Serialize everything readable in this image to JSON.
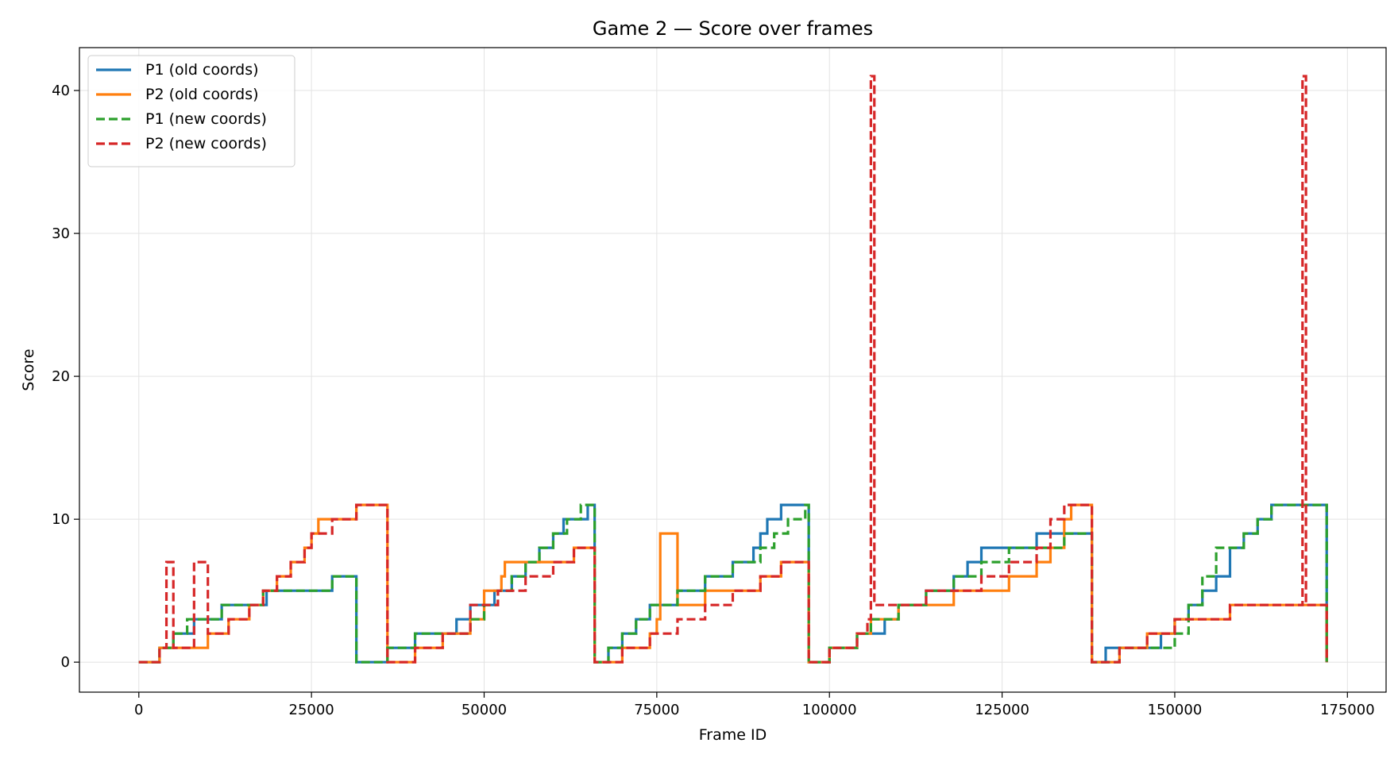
{
  "chart_data": {
    "type": "line",
    "title": "Game 2 — Score over frames",
    "xlabel": "Frame ID",
    "ylabel": "Score",
    "xlim": [
      -8600,
      180600
    ],
    "ylim": [
      -2.1,
      43.0
    ],
    "xticks": [
      0,
      25000,
      50000,
      75000,
      100000,
      125000,
      150000,
      175000
    ],
    "xtick_labels": [
      "0",
      "25000",
      "50000",
      "75000",
      "100000",
      "125000",
      "150000",
      "175000"
    ],
    "yticks": [
      0,
      10,
      20,
      30,
      40
    ],
    "ytick_labels": [
      "0",
      "10",
      "20",
      "30",
      "40"
    ],
    "grid": true,
    "legend_position": "upper-left",
    "series": [
      {
        "name": "P1 (old coords)",
        "color": "#1f77b4",
        "dash": "solid",
        "x": [
          0,
          3000,
          5000,
          8000,
          9500,
          12000,
          16000,
          18500,
          22000,
          25000,
          28000,
          30000,
          31500,
          36000,
          40000,
          44000,
          46000,
          48000,
          50000,
          51500,
          52500,
          54000,
          56000,
          58000,
          60000,
          61500,
          63000,
          65000,
          66000,
          68000,
          70000,
          72000,
          74000,
          76000,
          78000,
          80000,
          82000,
          84000,
          86000,
          88000,
          89000,
          90000,
          91000,
          92000,
          93000,
          95000,
          96500,
          97000,
          100000,
          104000,
          106000,
          108000,
          110000,
          112000,
          114000,
          116000,
          118000,
          120000,
          121000,
          122000,
          124000,
          126000,
          128000,
          130000,
          132000,
          134000,
          136000,
          137500,
          138000,
          140000,
          144000,
          148000,
          150000,
          152000,
          154000,
          156000,
          158000,
          160000,
          162000,
          164000,
          166000,
          168000,
          170000,
          172000
        ],
        "y": [
          0,
          1,
          2,
          3,
          3,
          4,
          4,
          5,
          5,
          5,
          6,
          6,
          0,
          1,
          2,
          2,
          3,
          4,
          4,
          5,
          5,
          6,
          7,
          8,
          9,
          10,
          10,
          11,
          0,
          1,
          2,
          3,
          4,
          4,
          5,
          5,
          6,
          6,
          7,
          7,
          8,
          9,
          10,
          10,
          11,
          11,
          11,
          0,
          1,
          2,
          2,
          3,
          4,
          4,
          5,
          5,
          6,
          7,
          7,
          8,
          8,
          8,
          8,
          9,
          9,
          9,
          9,
          9,
          0,
          1,
          1,
          2,
          3,
          4,
          5,
          6,
          8,
          9,
          10,
          11,
          11,
          11,
          11,
          0
        ]
      },
      {
        "name": "P2 (old coords)",
        "color": "#ff7f0e",
        "dash": "solid",
        "x": [
          0,
          3000,
          5000,
          8000,
          10000,
          13000,
          16000,
          18000,
          20000,
          22000,
          24000,
          25000,
          26000,
          27000,
          28000,
          29000,
          30000,
          31500,
          36000,
          40000,
          44000,
          48000,
          50000,
          52500,
          53000,
          56000,
          60000,
          63000,
          65000,
          66000,
          70000,
          74000,
          75000,
          75500,
          78000,
          82000,
          86000,
          90000,
          93000,
          96500,
          97000,
          100000,
          104000,
          106000,
          110000,
          114000,
          118000,
          122000,
          126000,
          130000,
          132000,
          134000,
          135000,
          136000,
          137500,
          138000,
          142000,
          146000,
          150000,
          154000,
          158000,
          162000,
          166000,
          170000,
          172000
        ],
        "y": [
          0,
          1,
          1,
          1,
          2,
          3,
          4,
          5,
          6,
          7,
          8,
          9,
          10,
          10,
          10,
          10,
          10,
          11,
          0,
          1,
          2,
          3,
          5,
          6,
          7,
          7,
          7,
          8,
          8,
          0,
          1,
          2,
          3,
          9,
          4,
          5,
          5,
          6,
          7,
          7,
          0,
          1,
          2,
          3,
          4,
          4,
          5,
          5,
          6,
          7,
          8,
          10,
          11,
          11,
          11,
          0,
          1,
          2,
          3,
          3,
          4,
          4,
          4,
          4,
          0
        ]
      },
      {
        "name": "P1 (new coords)",
        "color": "#2ca02c",
        "dash": "dashed",
        "x": [
          0,
          3000,
          5000,
          7000,
          8000,
          10000,
          12000,
          14000,
          16000,
          18000,
          20000,
          22000,
          24000,
          26000,
          28000,
          30000,
          31500,
          36000,
          40000,
          44000,
          48000,
          50000,
          52000,
          54000,
          56000,
          58000,
          60000,
          62000,
          64000,
          65000,
          66000,
          68000,
          70000,
          72000,
          74000,
          76000,
          78000,
          80000,
          82000,
          84000,
          86000,
          88000,
          90000,
          92000,
          94000,
          96500,
          97000,
          100000,
          104000,
          106000,
          110000,
          114000,
          118000,
          122000,
          126000,
          130000,
          134000,
          137500,
          138000,
          142000,
          146000,
          150000,
          152000,
          154000,
          156000,
          158000,
          160000,
          162000,
          164000,
          166000,
          168000,
          170000,
          172000
        ],
        "y": [
          0,
          1,
          2,
          3,
          3,
          3,
          4,
          4,
          4,
          5,
          5,
          5,
          5,
          5,
          6,
          6,
          0,
          1,
          2,
          2,
          3,
          4,
          5,
          6,
          7,
          8,
          9,
          10,
          11,
          11,
          0,
          1,
          2,
          3,
          4,
          4,
          5,
          5,
          6,
          6,
          7,
          7,
          8,
          9,
          10,
          11,
          0,
          1,
          2,
          3,
          4,
          5,
          6,
          7,
          8,
          8,
          9,
          9,
          0,
          1,
          1,
          2,
          4,
          6,
          8,
          8,
          9,
          10,
          11,
          11,
          11,
          11,
          0
        ]
      },
      {
        "name": "P2 (new coords)",
        "color": "#d62728",
        "dash": "dashed",
        "x": [
          0,
          3000,
          4000,
          5000,
          8000,
          10000,
          13000,
          16000,
          18000,
          20000,
          22000,
          24000,
          25000,
          28000,
          30000,
          31500,
          36000,
          40000,
          44000,
          48000,
          52000,
          56000,
          60000,
          63000,
          65000,
          66000,
          70000,
          74000,
          78000,
          82000,
          86000,
          90000,
          93000,
          96500,
          97000,
          100000,
          104000,
          105500,
          106000,
          106500,
          110000,
          114000,
          118000,
          122000,
          126000,
          130000,
          132000,
          134000,
          136000,
          137500,
          138000,
          142000,
          146000,
          150000,
          154000,
          158000,
          162000,
          166000,
          168500,
          169000,
          172000
        ],
        "y": [
          0,
          1,
          7,
          1,
          7,
          2,
          3,
          4,
          5,
          6,
          7,
          8,
          9,
          10,
          10,
          11,
          0,
          1,
          2,
          4,
          5,
          6,
          7,
          8,
          8,
          0,
          1,
          2,
          3,
          4,
          5,
          6,
          7,
          7,
          0,
          1,
          2,
          3,
          41,
          4,
          4,
          5,
          5,
          6,
          7,
          8,
          10,
          11,
          11,
          11,
          0,
          1,
          2,
          3,
          3,
          4,
          4,
          4,
          41,
          4,
          0
        ]
      }
    ]
  }
}
